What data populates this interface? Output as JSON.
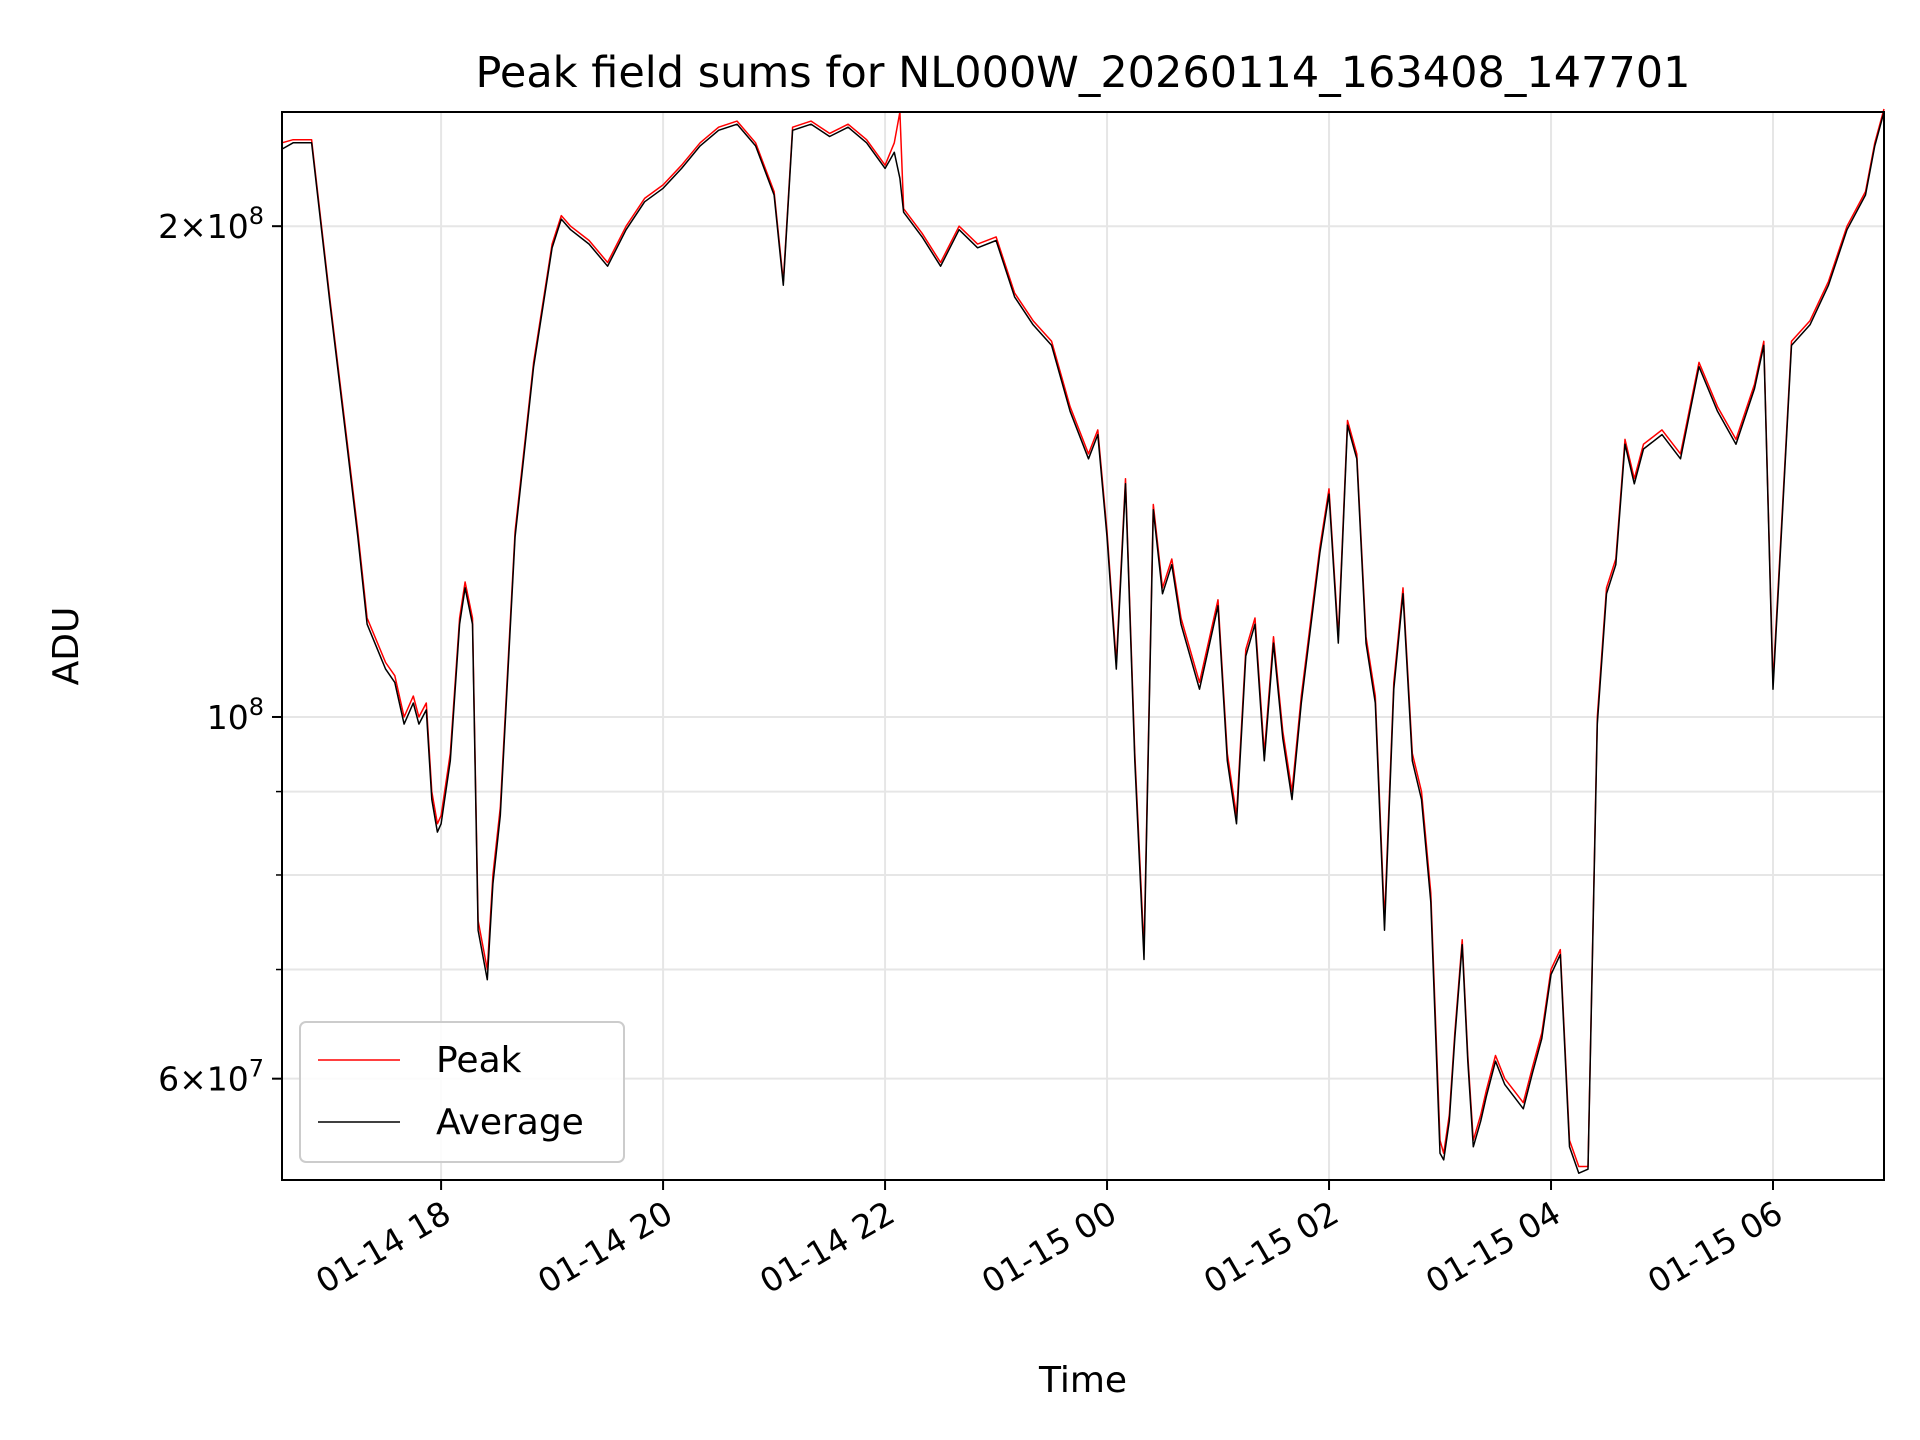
{
  "chart_data": {
    "type": "line",
    "title": "Peak field sums for NL000W_20260114_163408_147701",
    "xlabel": "Time",
    "ylabel": "ADU",
    "yscale": "log",
    "ylim": [
      52000000,
      235000000
    ],
    "xlim": [
      "2026-01-14 16:34",
      "2026-01-15 07:00"
    ],
    "grid": true,
    "legend_position": "lower left",
    "x_ticks": [
      {
        "value": "2026-01-14 18:00",
        "label": "01-14 18"
      },
      {
        "value": "2026-01-14 20:00",
        "label": "01-14 20"
      },
      {
        "value": "2026-01-14 22:00",
        "label": "01-14 22"
      },
      {
        "value": "2026-01-15 00:00",
        "label": "01-15 00"
      },
      {
        "value": "2026-01-15 02:00",
        "label": "01-15 02"
      },
      {
        "value": "2026-01-15 04:00",
        "label": "01-15 04"
      },
      {
        "value": "2026-01-15 06:00",
        "label": "01-15 06"
      }
    ],
    "y_ticks_major": [
      {
        "value": 60000000,
        "mantissa": "6",
        "exponent": "7"
      },
      {
        "value": 100000000,
        "mantissa": "",
        "exponent": "8"
      },
      {
        "value": 200000000,
        "mantissa": "2",
        "exponent": "8"
      }
    ],
    "y_ticks_minor": [
      70000000,
      80000000,
      90000000
    ],
    "x": [
      "2026-01-14 16:34",
      "2026-01-14 16:40",
      "2026-01-14 16:45",
      "2026-01-14 16:50",
      "2026-01-14 17:00",
      "2026-01-14 17:10",
      "2026-01-14 17:15",
      "2026-01-14 17:20",
      "2026-01-14 17:30",
      "2026-01-14 17:35",
      "2026-01-14 17:40",
      "2026-01-14 17:45",
      "2026-01-14 17:48",
      "2026-01-14 17:52",
      "2026-01-14 17:55",
      "2026-01-14 17:58",
      "2026-01-14 18:00",
      "2026-01-14 18:05",
      "2026-01-14 18:10",
      "2026-01-14 18:13",
      "2026-01-14 18:17",
      "2026-01-14 18:20",
      "2026-01-14 18:25",
      "2026-01-14 18:28",
      "2026-01-14 18:32",
      "2026-01-14 18:40",
      "2026-01-14 18:50",
      "2026-01-14 19:00",
      "2026-01-14 19:05",
      "2026-01-14 19:10",
      "2026-01-14 19:20",
      "2026-01-14 19:30",
      "2026-01-14 19:40",
      "2026-01-14 19:50",
      "2026-01-14 20:00",
      "2026-01-14 20:10",
      "2026-01-14 20:20",
      "2026-01-14 20:30",
      "2026-01-14 20:40",
      "2026-01-14 20:50",
      "2026-01-14 21:00",
      "2026-01-14 21:05",
      "2026-01-14 21:10",
      "2026-01-14 21:20",
      "2026-01-14 21:30",
      "2026-01-14 21:40",
      "2026-01-14 21:50",
      "2026-01-14 22:00",
      "2026-01-14 22:05",
      "2026-01-14 22:08",
      "2026-01-14 22:10",
      "2026-01-14 22:20",
      "2026-01-14 22:30",
      "2026-01-14 22:40",
      "2026-01-14 22:50",
      "2026-01-14 23:00",
      "2026-01-14 23:10",
      "2026-01-14 23:20",
      "2026-01-14 23:30",
      "2026-01-14 23:40",
      "2026-01-14 23:50",
      "2026-01-14 23:55",
      "2026-01-15 00:00",
      "2026-01-15 00:05",
      "2026-01-15 00:10",
      "2026-01-15 00:15",
      "2026-01-15 00:20",
      "2026-01-15 00:25",
      "2026-01-15 00:30",
      "2026-01-15 00:35",
      "2026-01-15 00:40",
      "2026-01-15 00:50",
      "2026-01-15 01:00",
      "2026-01-15 01:05",
      "2026-01-15 01:10",
      "2026-01-15 01:15",
      "2026-01-15 01:20",
      "2026-01-15 01:25",
      "2026-01-15 01:30",
      "2026-01-15 01:35",
      "2026-01-15 01:40",
      "2026-01-15 01:45",
      "2026-01-15 01:55",
      "2026-01-15 02:00",
      "2026-01-15 02:05",
      "2026-01-15 02:10",
      "2026-01-15 02:15",
      "2026-01-15 02:20",
      "2026-01-15 02:25",
      "2026-01-15 02:30",
      "2026-01-15 02:35",
      "2026-01-15 02:40",
      "2026-01-15 02:45",
      "2026-01-15 02:50",
      "2026-01-15 02:55",
      "2026-01-15 03:00",
      "2026-01-15 03:02",
      "2026-01-15 03:05",
      "2026-01-15 03:08",
      "2026-01-15 03:12",
      "2026-01-15 03:15",
      "2026-01-15 03:18",
      "2026-01-15 03:22",
      "2026-01-15 03:25",
      "2026-01-15 03:30",
      "2026-01-15 03:35",
      "2026-01-15 03:40",
      "2026-01-15 03:45",
      "2026-01-15 03:50",
      "2026-01-15 03:55",
      "2026-01-15 04:00",
      "2026-01-15 04:05",
      "2026-01-15 04:10",
      "2026-01-15 04:15",
      "2026-01-15 04:20",
      "2026-01-15 04:25",
      "2026-01-15 04:30",
      "2026-01-15 04:35",
      "2026-01-15 04:40",
      "2026-01-15 04:45",
      "2026-01-15 04:50",
      "2026-01-15 05:00",
      "2026-01-15 05:10",
      "2026-01-15 05:20",
      "2026-01-15 05:30",
      "2026-01-15 05:40",
      "2026-01-15 05:50",
      "2026-01-15 05:55",
      "2026-01-15 06:00",
      "2026-01-15 06:10",
      "2026-01-15 06:20",
      "2026-01-15 06:30",
      "2026-01-15 06:40",
      "2026-01-15 06:50",
      "2026-01-15 06:55",
      "2026-01-15 07:00"
    ],
    "series": [
      {
        "name": "Peak",
        "color": "#ff0000",
        "values": [
          225000000,
          226000000,
          226000000,
          226000000,
          180000000,
          145000000,
          130000000,
          115000000,
          108000000,
          106000000,
          100000000,
          103000000,
          100000000,
          102000000,
          90000000,
          86000000,
          87000000,
          95000000,
          115000000,
          121000000,
          115000000,
          75000000,
          70000000,
          80000000,
          88000000,
          130000000,
          165000000,
          195000000,
          203000000,
          200000000,
          196000000,
          190000000,
          200000000,
          208000000,
          212000000,
          218000000,
          225000000,
          230000000,
          232000000,
          225000000,
          210000000,
          185000000,
          230000000,
          232000000,
          228000000,
          231000000,
          226000000,
          218000000,
          225000000,
          235000000,
          205000000,
          198000000,
          190000000,
          200000000,
          195000000,
          197000000,
          182000000,
          175000000,
          170000000,
          155000000,
          145000000,
          150000000,
          130000000,
          108000000,
          140000000,
          95000000,
          72000000,
          135000000,
          120000000,
          125000000,
          115000000,
          105000000,
          118000000,
          95000000,
          87000000,
          110000000,
          115000000,
          95000000,
          112000000,
          98000000,
          90000000,
          103000000,
          127000000,
          138000000,
          112000000,
          152000000,
          145000000,
          112000000,
          103000000,
          75000000,
          105000000,
          120000000,
          95000000,
          90000000,
          78000000,
          55000000,
          54000000,
          57000000,
          64000000,
          73000000,
          62000000,
          55000000,
          57000000,
          59000000,
          62000000,
          60000000,
          59000000,
          58000000,
          61000000,
          64000000,
          70000000,
          72000000,
          55000000,
          53000000,
          53000000,
          100000000,
          120000000,
          125000000,
          148000000,
          140000000,
          147000000,
          150000000,
          145000000,
          165000000,
          155000000,
          148000000,
          160000000,
          170000000,
          105000000,
          170000000,
          175000000,
          185000000,
          200000000,
          210000000,
          225000000,
          236000000
        ]
      },
      {
        "name": "Average",
        "color": "#000000",
        "values": [
          223000000,
          225000000,
          225000000,
          225000000,
          179000000,
          144000000,
          129000000,
          114000000,
          107000000,
          105000000,
          99000000,
          102000000,
          99000000,
          101000000,
          89000000,
          85000000,
          86000000,
          94000000,
          114000000,
          120000000,
          114000000,
          74000000,
          69000000,
          79000000,
          87000000,
          129000000,
          164000000,
          194000000,
          202000000,
          199000000,
          195000000,
          189000000,
          199000000,
          207000000,
          211000000,
          217000000,
          224000000,
          229000000,
          231000000,
          224000000,
          209000000,
          184000000,
          229000000,
          231000000,
          227000000,
          230000000,
          225000000,
          217000000,
          222000000,
          214000000,
          204000000,
          197000000,
          189000000,
          199000000,
          194000000,
          196000000,
          181000000,
          174000000,
          169000000,
          154000000,
          144000000,
          149000000,
          129000000,
          107000000,
          139000000,
          94000000,
          71000000,
          134000000,
          119000000,
          124000000,
          114000000,
          104000000,
          117000000,
          94000000,
          86000000,
          109000000,
          114000000,
          94000000,
          111000000,
          97000000,
          89000000,
          102000000,
          126000000,
          137000000,
          111000000,
          151000000,
          144000000,
          111000000,
          102000000,
          74000000,
          104000000,
          119000000,
          94000000,
          89000000,
          77000000,
          54000000,
          53500000,
          56500000,
          63500000,
          72500000,
          61500000,
          54500000,
          56500000,
          58500000,
          61500000,
          59500000,
          58500000,
          57500000,
          60500000,
          63500000,
          69500000,
          71500000,
          54500000,
          52500000,
          52800000,
          99000000,
          119000000,
          124000000,
          147000000,
          139000000,
          146000000,
          149000000,
          144000000,
          164000000,
          154000000,
          147000000,
          159000000,
          169000000,
          104000000,
          169000000,
          174000000,
          184000000,
          199000000,
          209000000,
          224000000,
          235000000
        ]
      }
    ]
  }
}
